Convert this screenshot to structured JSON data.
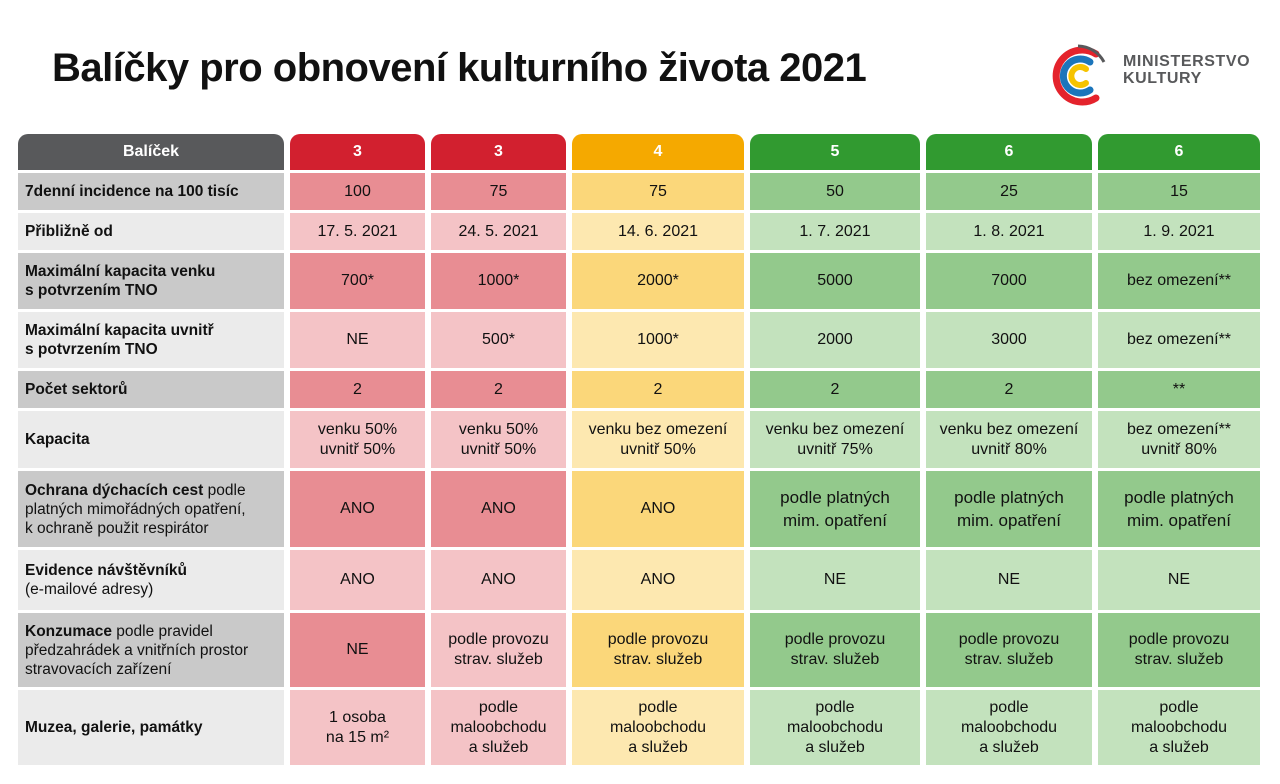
{
  "title": "Balíčky pro obnovení kulturního života 2021",
  "logo": {
    "line1": "MINISTERSTVO",
    "line2": "KULTURY",
    "colors": {
      "red": "#e4232c",
      "yellow": "#f6c300",
      "blue": "#1b75bb",
      "gray": "#58595b"
    }
  },
  "table": {
    "header_label": "Balíček",
    "packages": [
      "3",
      "3",
      "4",
      "5",
      "6",
      "6"
    ],
    "rows": [
      {
        "label": "7denní incidence na 100 tisíc",
        "values": [
          "100",
          "75",
          "75",
          "50",
          "25",
          "15"
        ]
      },
      {
        "label": "Přibližně od",
        "values": [
          "17. 5. 2021",
          "24. 5. 2021",
          "14. 6. 2021",
          "1. 7. 2021",
          "1. 8. 2021",
          "1. 9. 2021"
        ]
      },
      {
        "label_lines": [
          "Maximální kapacita venku",
          "s potvrzením TNO"
        ],
        "values": [
          "700*",
          "1000*",
          "2000*",
          "5000",
          "7000",
          "bez omezení**"
        ]
      },
      {
        "label_lines": [
          "Maximální kapacita uvnitř",
          "s potvrzením TNO"
        ],
        "values": [
          "NE",
          "500*",
          "1000*",
          "2000",
          "3000",
          "bez omezení**"
        ]
      },
      {
        "label": "Počet sektorů",
        "values": [
          "2",
          "2",
          "2",
          "2",
          "2",
          "**"
        ]
      },
      {
        "label": "Kapacita",
        "values": [
          [
            "venku 50%",
            "uvnitř 50%"
          ],
          [
            "venku 50%",
            "uvnitř 50%"
          ],
          [
            "venku bez omezení",
            "uvnitř 50%"
          ],
          [
            "venku bez omezení",
            "uvnitř 75%"
          ],
          [
            "venku bez omezení",
            "uvnitř 80%"
          ],
          [
            "bez omezení**",
            "uvnitř 80%"
          ]
        ]
      },
      {
        "label_bold": "Ochrana dýchacích cest",
        "label_rest_1": " podle",
        "label_rest_2": "platných mimořádných opatření,",
        "label_rest_3": "k ochraně použit respirátor",
        "values": [
          [
            "ANO"
          ],
          [
            "ANO"
          ],
          [
            "ANO"
          ],
          [
            "podle platných",
            "mim. opatření"
          ],
          [
            "podle platných",
            "mim. opatření"
          ],
          [
            "podle platných",
            "mim. opatření"
          ]
        ]
      },
      {
        "label_bold": "Evidence návštěvníků",
        "label_rest_1": "(e-mailové adresy)",
        "values": [
          "ANO",
          "ANO",
          "ANO",
          "NE",
          "NE",
          "NE"
        ]
      },
      {
        "label_bold": "Konzumace",
        "label_rest_1": " podle pravidel",
        "label_rest_2": "předzahrádek a vnitřních prostor",
        "label_rest_3": "stravovacích zařízení",
        "values": [
          [
            "NE"
          ],
          [
            "podle provozu",
            "strav. služeb"
          ],
          [
            "podle provozu",
            "strav. služeb"
          ],
          [
            "podle provozu",
            "strav. služeb"
          ],
          [
            "podle provozu",
            "strav. služeb"
          ],
          [
            "podle provozu",
            "strav. služeb"
          ]
        ]
      },
      {
        "label": "Muzea, galerie, památky",
        "values": [
          [
            "1 osoba",
            "na 15 m²"
          ],
          [
            "podle",
            "maloobchodu",
            "a služeb"
          ],
          [
            "podle",
            "maloobchodu",
            "a služeb"
          ],
          [
            "podle",
            "maloobchodu",
            "a služeb"
          ],
          [
            "podle",
            "maloobchodu",
            "a služeb"
          ],
          [
            "podle",
            "maloobchodu",
            "a služeb"
          ]
        ]
      }
    ]
  }
}
